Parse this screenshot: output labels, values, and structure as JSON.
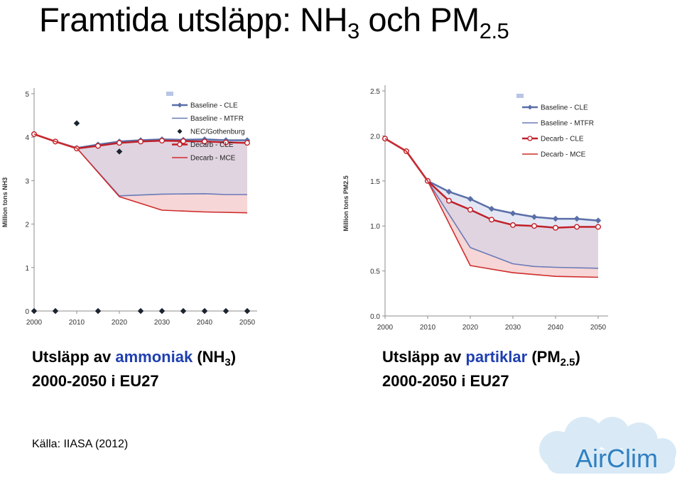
{
  "title": {
    "main": "Framtida utsläpp: NH",
    "sub1": "3",
    "mid": " och PM",
    "sub2": "2.5"
  },
  "captions": {
    "left": {
      "prefix": "Utsläpp av ",
      "highlight": "ammoniak",
      "formula_open": " (NH",
      "formula_sub": "3",
      "formula_close": ")",
      "line2": "2000-2050 i EU27"
    },
    "right": {
      "prefix": "Utsläpp av ",
      "highlight": "partiklar",
      "formula_open": " (PM",
      "formula_sub": "2.5",
      "formula_close": ")",
      "line2": "2000-2050 i EU27"
    }
  },
  "source": "Källa: IIASA (2012)",
  "logo_text": "AirClim",
  "colors": {
    "accent_blue": "#1f3fb0",
    "baseline_cle": "#5a6fa8",
    "baseline_mtfr": "#6a7ab8",
    "decarb_cle": "#c0202a",
    "decarb_mce": "#cf2b2b",
    "band_blue": "#cdd3ea",
    "band_red": "#f3c8c8",
    "logo_blue": "#2f7fc1"
  },
  "chart_data": [
    {
      "type": "line",
      "title": "",
      "xlabel": "",
      "ylabel": "Million tons NH3",
      "xlim": [
        2000,
        2050
      ],
      "ylim": [
        0,
        5
      ],
      "xticks": [
        "2000",
        "2010",
        "2020",
        "2030",
        "2040",
        "2050"
      ],
      "yticks": [
        "0",
        "1",
        "2",
        "3",
        "4",
        "5"
      ],
      "legend_position": "top-right",
      "grid": false,
      "series": [
        {
          "name": "Baseline - CLE",
          "x": [
            2000,
            2005,
            2010,
            2015,
            2020,
            2025,
            2030,
            2035,
            2040,
            2045,
            2050
          ],
          "values": [
            4.07,
            3.9,
            3.75,
            3.83,
            3.9,
            3.93,
            3.95,
            3.94,
            3.95,
            3.93,
            3.93
          ]
        },
        {
          "name": "Baseline - MTFR",
          "x": [
            2000,
            2005,
            2010,
            2020,
            2030,
            2040,
            2045,
            2050
          ],
          "values": [
            4.07,
            3.9,
            3.75,
            2.65,
            2.69,
            2.7,
            2.68,
            2.68
          ]
        },
        {
          "name": "NEC/Gothenburg",
          "x": [
            2000,
            2005,
            2010,
            2015,
            2020,
            2025,
            2030,
            2035,
            2040,
            2045,
            2050
          ],
          "values": [
            0,
            0,
            4.32,
            0,
            3.67,
            0,
            0,
            0,
            0,
            0,
            0
          ]
        },
        {
          "name": "Decarb - CLE",
          "x": [
            2000,
            2005,
            2010,
            2015,
            2020,
            2025,
            2030,
            2035,
            2040,
            2045,
            2050
          ],
          "values": [
            4.07,
            3.9,
            3.74,
            3.8,
            3.87,
            3.9,
            3.92,
            3.91,
            3.9,
            3.88,
            3.87
          ]
        },
        {
          "name": "Decarb - MCE",
          "x": [
            2000,
            2005,
            2010,
            2020,
            2030,
            2040,
            2050
          ],
          "values": [
            4.07,
            3.9,
            3.75,
            2.63,
            2.32,
            2.28,
            2.26
          ]
        }
      ]
    },
    {
      "type": "line",
      "title": "",
      "xlabel": "",
      "ylabel": "Million tons PM2.5",
      "xlim": [
        2000,
        2050
      ],
      "ylim": [
        0,
        2.5
      ],
      "xticks": [
        "2000",
        "2010",
        "2020",
        "2030",
        "2040",
        "2050"
      ],
      "yticks": [
        "0.0",
        "0.5",
        "1.0",
        "1.5",
        "2.0",
        "2.5"
      ],
      "legend_position": "top-right",
      "grid": false,
      "series": [
        {
          "name": "Baseline - CLE",
          "x": [
            2000,
            2005,
            2010,
            2015,
            2020,
            2025,
            2030,
            2035,
            2040,
            2045,
            2050
          ],
          "values": [
            1.97,
            1.83,
            1.5,
            1.38,
            1.3,
            1.19,
            1.14,
            1.1,
            1.08,
            1.08,
            1.06
          ]
        },
        {
          "name": "Baseline - MTFR",
          "x": [
            2000,
            2005,
            2010,
            2020,
            2030,
            2035,
            2040,
            2050
          ],
          "values": [
            1.97,
            1.83,
            1.5,
            0.76,
            0.58,
            0.55,
            0.54,
            0.53
          ]
        },
        {
          "name": "Decarb - CLE",
          "x": [
            2000,
            2005,
            2010,
            2015,
            2020,
            2025,
            2030,
            2035,
            2040,
            2045,
            2050
          ],
          "values": [
            1.97,
            1.83,
            1.5,
            1.28,
            1.18,
            1.07,
            1.01,
            1.0,
            0.98,
            0.99,
            0.99
          ]
        },
        {
          "name": "Decarb - MCE",
          "x": [
            2000,
            2005,
            2010,
            2020,
            2030,
            2040,
            2050
          ],
          "values": [
            1.97,
            1.83,
            1.5,
            0.56,
            0.48,
            0.44,
            0.43
          ]
        }
      ]
    }
  ]
}
